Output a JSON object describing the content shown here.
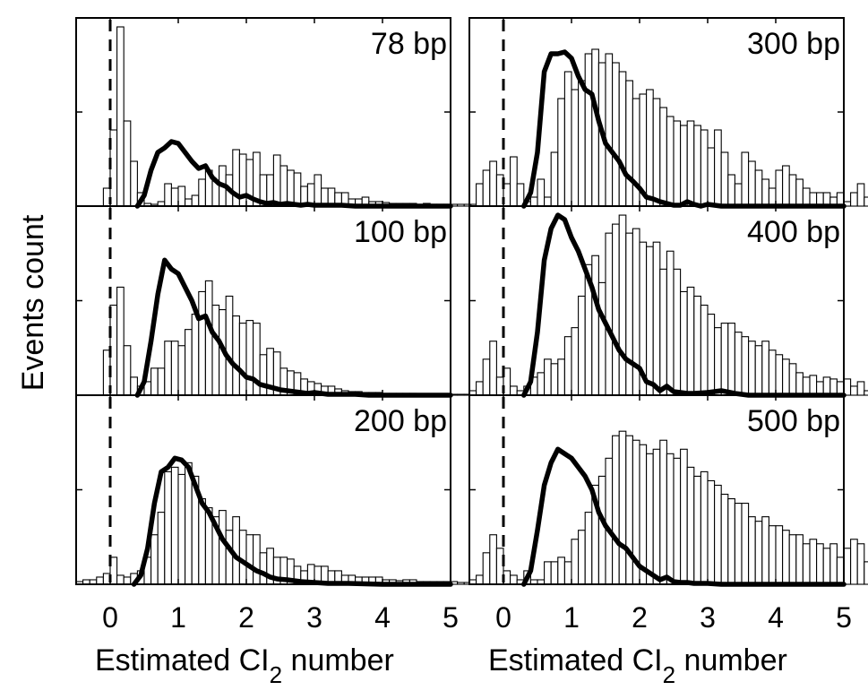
{
  "figure": {
    "ylabel": "Events count",
    "xlabel_main": "Estimated CI",
    "xlabel_sub": "2",
    "xlabel_tail": " number"
  },
  "chart_data": [
    {
      "type": "bar",
      "label": "78 bp",
      "column": "left",
      "xlim": [
        -0.5,
        5
      ],
      "bin_width": 0.1,
      "bin_start": -0.45,
      "ylim": [
        0,
        210
      ],
      "bars": [
        0,
        0,
        0,
        0,
        20,
        85,
        200,
        95,
        50,
        15,
        3,
        2,
        5,
        25,
        20,
        22,
        8,
        12,
        30,
        40,
        28,
        45,
        35,
        63,
        58,
        52,
        60,
        35,
        35,
        57,
        45,
        40,
        37,
        22,
        25,
        35,
        20,
        20,
        15,
        15,
        8,
        8,
        10,
        5,
        5,
        4,
        3,
        3,
        3,
        3,
        2,
        3,
        2,
        2,
        2,
        2,
        2,
        2,
        2,
        1
      ],
      "curve_x": [
        0.4,
        0.5,
        0.6,
        0.7,
        0.8,
        0.9,
        1.0,
        1.1,
        1.2,
        1.3,
        1.4,
        1.5,
        1.6,
        1.7,
        1.8,
        1.9,
        2.0,
        2.1,
        2.2,
        2.3,
        2.4,
        2.5,
        2.6,
        2.7,
        2.8,
        2.9,
        3.0,
        3.1,
        3.2,
        3.4,
        3.6,
        3.8,
        4.0,
        4.5,
        5.0
      ],
      "curve_y": [
        0,
        12,
        40,
        60,
        65,
        72,
        70,
        60,
        50,
        42,
        45,
        32,
        25,
        22,
        15,
        10,
        12,
        8,
        5,
        3,
        4,
        2,
        3,
        2,
        1,
        2,
        1,
        1,
        1,
        1,
        0,
        0,
        0,
        0,
        0
      ],
      "dashed_x": 0
    },
    {
      "type": "bar",
      "label": "100 bp",
      "column": "left",
      "xlim": [
        -0.5,
        5
      ],
      "bin_width": 0.1,
      "bin_start": -0.45,
      "ylim": [
        0,
        210
      ],
      "bars": [
        0,
        0,
        0,
        0,
        50,
        100,
        120,
        55,
        20,
        10,
        15,
        30,
        30,
        60,
        60,
        55,
        73,
        90,
        115,
        127,
        100,
        95,
        110,
        88,
        80,
        83,
        80,
        45,
        52,
        48,
        30,
        27,
        25,
        18,
        15,
        13,
        10,
        10,
        7,
        5,
        4,
        4,
        3,
        3,
        3,
        2,
        2,
        2,
        2,
        2,
        1,
        1,
        1,
        1,
        1,
        1,
        1,
        1,
        1,
        1
      ],
      "curve_x": [
        0.4,
        0.5,
        0.6,
        0.7,
        0.8,
        0.9,
        1.0,
        1.1,
        1.2,
        1.3,
        1.4,
        1.5,
        1.6,
        1.7,
        1.8,
        1.9,
        2.0,
        2.1,
        2.2,
        2.3,
        2.4,
        2.5,
        2.6,
        2.7,
        2.8,
        2.9,
        3.0,
        3.2,
        3.4,
        3.6,
        3.8,
        4.0,
        4.5,
        5.0
      ],
      "curve_y": [
        0,
        15,
        60,
        112,
        150,
        140,
        135,
        120,
        105,
        85,
        88,
        70,
        60,
        45,
        35,
        28,
        20,
        18,
        12,
        10,
        8,
        6,
        5,
        4,
        3,
        2,
        3,
        1,
        1,
        1,
        0,
        0,
        0,
        0
      ],
      "dashed_x": 0
    },
    {
      "type": "bar",
      "label": "200 bp",
      "column": "left",
      "xlim": [
        -0.5,
        5
      ],
      "bin_width": 0.1,
      "bin_start": -0.45,
      "ylim": [
        0,
        210
      ],
      "bars": [
        3,
        5,
        5,
        8,
        12,
        30,
        10,
        8,
        12,
        15,
        30,
        55,
        80,
        125,
        130,
        122,
        135,
        120,
        95,
        85,
        75,
        82,
        60,
        75,
        60,
        55,
        55,
        35,
        40,
        30,
        30,
        28,
        20,
        15,
        22,
        20,
        20,
        15,
        15,
        10,
        10,
        8,
        8,
        8,
        8,
        5,
        5,
        4,
        5,
        5,
        3,
        3,
        3,
        3,
        3,
        3,
        2,
        2,
        2,
        2
      ],
      "curve_x": [
        0.35,
        0.45,
        0.55,
        0.65,
        0.75,
        0.85,
        0.95,
        1.05,
        1.15,
        1.25,
        1.35,
        1.45,
        1.55,
        1.65,
        1.75,
        1.85,
        1.95,
        2.05,
        2.15,
        2.25,
        2.35,
        2.45,
        2.6,
        2.8,
        3.0,
        3.2,
        3.5,
        4.0,
        4.5,
        5.0
      ],
      "curve_y": [
        0,
        10,
        40,
        90,
        125,
        130,
        140,
        138,
        130,
        110,
        90,
        80,
        65,
        50,
        40,
        30,
        25,
        20,
        15,
        12,
        8,
        6,
        5,
        3,
        2,
        1,
        1,
        0,
        0,
        0
      ],
      "dashed_x": 0
    },
    {
      "type": "bar",
      "label": "300 bp",
      "column": "right",
      "xlim": [
        -0.5,
        5
      ],
      "bin_width": 0.1,
      "bin_start": -0.45,
      "ylim": [
        0,
        210
      ],
      "bars": [
        0,
        25,
        40,
        50,
        35,
        25,
        55,
        25,
        5,
        10,
        30,
        10,
        60,
        120,
        150,
        130,
        140,
        170,
        175,
        160,
        170,
        160,
        150,
        140,
        120,
        125,
        130,
        120,
        110,
        100,
        95,
        90,
        95,
        90,
        85,
        65,
        85,
        60,
        35,
        25,
        60,
        50,
        40,
        30,
        20,
        40,
        45,
        35,
        30,
        20,
        15,
        15,
        15,
        10,
        15,
        5,
        15,
        25,
        10,
        0
      ],
      "curve_x": [
        0.3,
        0.4,
        0.5,
        0.6,
        0.7,
        0.8,
        0.9,
        1.0,
        1.1,
        1.2,
        1.3,
        1.4,
        1.5,
        1.6,
        1.7,
        1.8,
        1.9,
        2.0,
        2.1,
        2.2,
        2.3,
        2.4,
        2.5,
        2.6,
        2.7,
        2.8,
        2.9,
        3.0,
        3.2,
        3.4,
        3.6,
        3.8,
        4.0,
        4.5,
        5.0
      ],
      "curve_y": [
        0,
        15,
        60,
        150,
        170,
        170,
        172,
        165,
        145,
        130,
        125,
        95,
        70,
        60,
        50,
        35,
        28,
        20,
        10,
        8,
        5,
        3,
        1,
        1,
        5,
        2,
        0,
        2,
        0,
        0,
        0,
        0,
        0,
        0,
        0
      ],
      "dashed_x": 0
    },
    {
      "type": "bar",
      "label": "400 bp",
      "column": "right",
      "xlim": [
        -0.5,
        5
      ],
      "bin_width": 0.1,
      "bin_start": -0.45,
      "ylim": [
        0,
        210
      ],
      "bars": [
        5,
        15,
        40,
        60,
        20,
        30,
        10,
        5,
        10,
        20,
        25,
        40,
        35,
        40,
        65,
        75,
        110,
        145,
        155,
        125,
        180,
        190,
        200,
        180,
        185,
        170,
        165,
        170,
        140,
        160,
        140,
        115,
        120,
        110,
        100,
        90,
        75,
        80,
        80,
        70,
        65,
        60,
        55,
        60,
        50,
        45,
        40,
        35,
        25,
        20,
        22,
        15,
        20,
        18,
        15,
        18,
        10,
        15,
        5,
        0
      ],
      "curve_x": [
        0.3,
        0.4,
        0.5,
        0.6,
        0.7,
        0.8,
        0.9,
        1.0,
        1.1,
        1.2,
        1.3,
        1.4,
        1.5,
        1.6,
        1.7,
        1.8,
        1.9,
        2.0,
        2.1,
        2.2,
        2.3,
        2.4,
        2.5,
        2.6,
        2.7,
        2.8,
        3.0,
        3.2,
        3.4,
        3.6,
        3.8,
        4.0,
        4.5,
        5.0
      ],
      "curve_y": [
        0,
        15,
        70,
        150,
        185,
        200,
        195,
        175,
        160,
        140,
        120,
        95,
        80,
        65,
        50,
        40,
        35,
        30,
        15,
        12,
        5,
        10,
        4,
        3,
        2,
        2,
        3,
        5,
        2,
        0,
        0,
        0,
        0,
        0
      ],
      "dashed_x": 0
    },
    {
      "type": "bar",
      "label": "500 bp",
      "column": "right",
      "xlim": [
        -0.5,
        5
      ],
      "bin_width": 0.1,
      "bin_start": -0.45,
      "ylim": [
        0,
        210
      ],
      "bars": [
        5,
        10,
        35,
        55,
        40,
        15,
        10,
        5,
        15,
        5,
        5,
        25,
        25,
        30,
        25,
        50,
        60,
        80,
        110,
        120,
        140,
        165,
        170,
        165,
        160,
        155,
        145,
        150,
        160,
        145,
        140,
        150,
        130,
        120,
        125,
        115,
        110,
        100,
        95,
        90,
        90,
        75,
        70,
        75,
        65,
        65,
        60,
        55,
        55,
        45,
        50,
        45,
        40,
        45,
        30,
        40,
        50,
        45,
        25,
        0
      ],
      "curve_x": [
        0.3,
        0.4,
        0.5,
        0.6,
        0.7,
        0.8,
        0.9,
        1.0,
        1.1,
        1.2,
        1.3,
        1.4,
        1.5,
        1.6,
        1.7,
        1.8,
        1.9,
        2.0,
        2.1,
        2.2,
        2.3,
        2.4,
        2.5,
        2.6,
        2.7,
        2.8,
        3.0,
        3.2,
        3.4,
        3.6,
        3.8,
        4.0,
        4.5,
        5.0
      ],
      "curve_y": [
        0,
        15,
        60,
        110,
        135,
        150,
        145,
        140,
        130,
        120,
        105,
        80,
        65,
        55,
        45,
        40,
        30,
        20,
        15,
        10,
        5,
        8,
        3,
        2,
        2,
        1,
        1,
        0,
        0,
        0,
        0,
        0,
        0,
        0
      ],
      "dashed_x": 0
    }
  ],
  "axes": {
    "x_ticks": [
      "0",
      "1",
      "2",
      "3",
      "4",
      "5"
    ],
    "x_tick_values": [
      0,
      1,
      2,
      3,
      4,
      5
    ],
    "y_tick_values": [
      105
    ]
  }
}
